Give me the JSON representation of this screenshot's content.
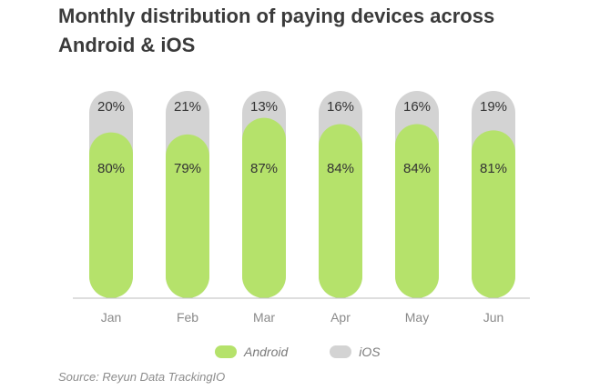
{
  "colors": {
    "android": "#b5e26b",
    "ios": "#d3d3d3",
    "baseline": "#bdbdbd",
    "label_text": "#333333",
    "axis_text": "#8a8a8a"
  },
  "legend": {
    "android_label": "Android",
    "ios_label": "iOS"
  },
  "source": "Source: Reyun Data TrackingIO",
  "chart_data": {
    "type": "bar",
    "stacked": true,
    "title": "Monthly distribution of paying devices across Android & iOS",
    "categories": [
      "Jan",
      "Feb",
      "Mar",
      "Apr",
      "May",
      "Jun"
    ],
    "series": [
      {
        "name": "Android",
        "values": [
          80,
          79,
          87,
          84,
          84,
          81
        ]
      },
      {
        "name": "iOS",
        "values": [
          20,
          21,
          13,
          16,
          16,
          19
        ]
      }
    ],
    "value_labels": {
      "Android": [
        "80%",
        "79%",
        "87%",
        "84%",
        "84%",
        "81%"
      ],
      "iOS": [
        "20%",
        "21%",
        "13%",
        "16%",
        "16%",
        "19%"
      ]
    },
    "ylim": [
      0,
      100
    ],
    "grid": false,
    "legend_position": "bottom"
  }
}
